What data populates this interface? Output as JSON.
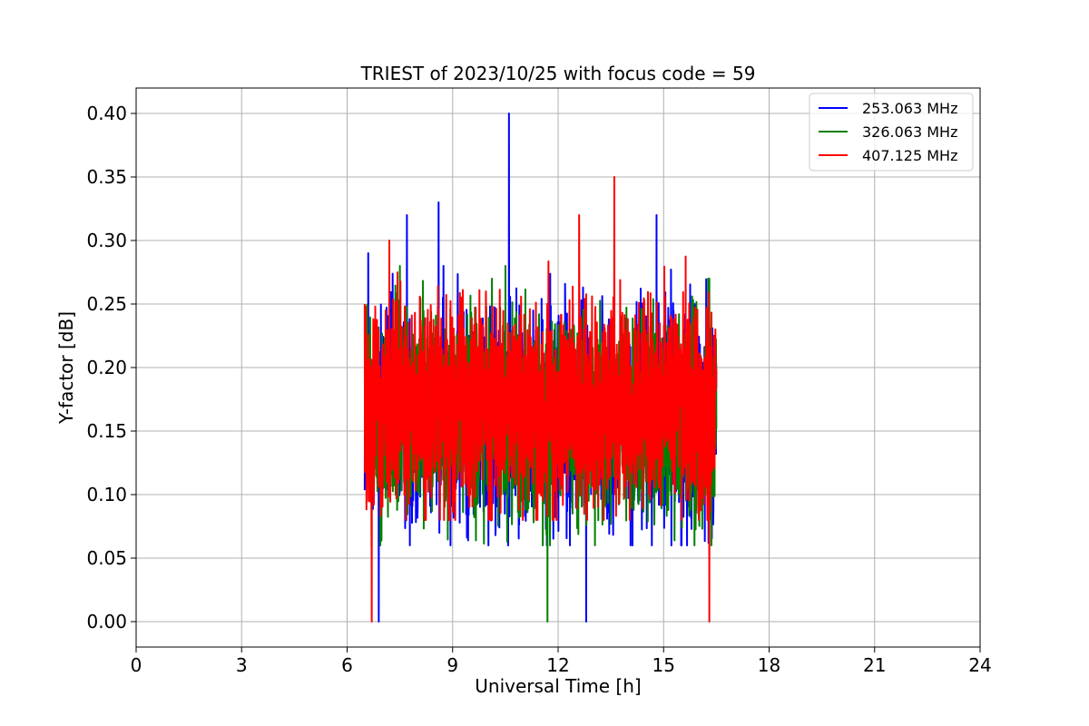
{
  "chart_data": {
    "type": "line",
    "title": "TRIEST of 2023/10/25 with focus code = 59",
    "xlabel": "Universal Time [h]",
    "ylabel": "Y-factor [dB]",
    "xlim": [
      0,
      24
    ],
    "ylim": [
      -0.02,
      0.42
    ],
    "x_ticks": [
      0,
      3,
      6,
      9,
      12,
      15,
      18,
      21,
      24
    ],
    "y_ticks": [
      0.0,
      0.05,
      0.1,
      0.15,
      0.2,
      0.25,
      0.3,
      0.35,
      0.4
    ],
    "x_tick_labels": [
      "0",
      "3",
      "6",
      "9",
      "12",
      "15",
      "18",
      "21",
      "24"
    ],
    "y_tick_labels": [
      "0.00",
      "0.05",
      "0.10",
      "0.15",
      "0.20",
      "0.25",
      "0.30",
      "0.35",
      "0.40"
    ],
    "grid": true,
    "legend_position": "top-right",
    "x_range_of_data": [
      6.5,
      16.5
    ],
    "series": [
      {
        "name": "253.063 MHz",
        "color": "#0000ff",
        "baseline": 0.16,
        "typical_low": 0.08,
        "typical_high": 0.26,
        "min": 0.0,
        "max": 0.4,
        "notable_points": [
          {
            "x": 6.6,
            "y": 0.29
          },
          {
            "x": 6.9,
            "y": 0.0
          },
          {
            "x": 7.7,
            "y": 0.32
          },
          {
            "x": 8.6,
            "y": 0.33
          },
          {
            "x": 10.6,
            "y": 0.4
          },
          {
            "x": 12.8,
            "y": 0.0
          },
          {
            "x": 14.8,
            "y": 0.32
          }
        ]
      },
      {
        "name": "326.063 MHz",
        "color": "#008000",
        "baseline": 0.16,
        "typical_low": 0.08,
        "typical_high": 0.25,
        "min": 0.0,
        "max": 0.29,
        "notable_points": [
          {
            "x": 7.5,
            "y": 0.28
          },
          {
            "x": 10.5,
            "y": 0.28
          },
          {
            "x": 11.7,
            "y": 0.0
          },
          {
            "x": 16.3,
            "y": 0.27
          }
        ]
      },
      {
        "name": "407.125 MHz",
        "color": "#ff0000",
        "baseline": 0.17,
        "typical_low": 0.1,
        "typical_high": 0.27,
        "min": 0.0,
        "max": 0.35,
        "notable_points": [
          {
            "x": 6.5,
            "y": 0.25
          },
          {
            "x": 6.7,
            "y": 0.0
          },
          {
            "x": 7.2,
            "y": 0.3
          },
          {
            "x": 12.6,
            "y": 0.32
          },
          {
            "x": 13.6,
            "y": 0.35
          },
          {
            "x": 16.3,
            "y": 0.0
          }
        ]
      }
    ]
  }
}
